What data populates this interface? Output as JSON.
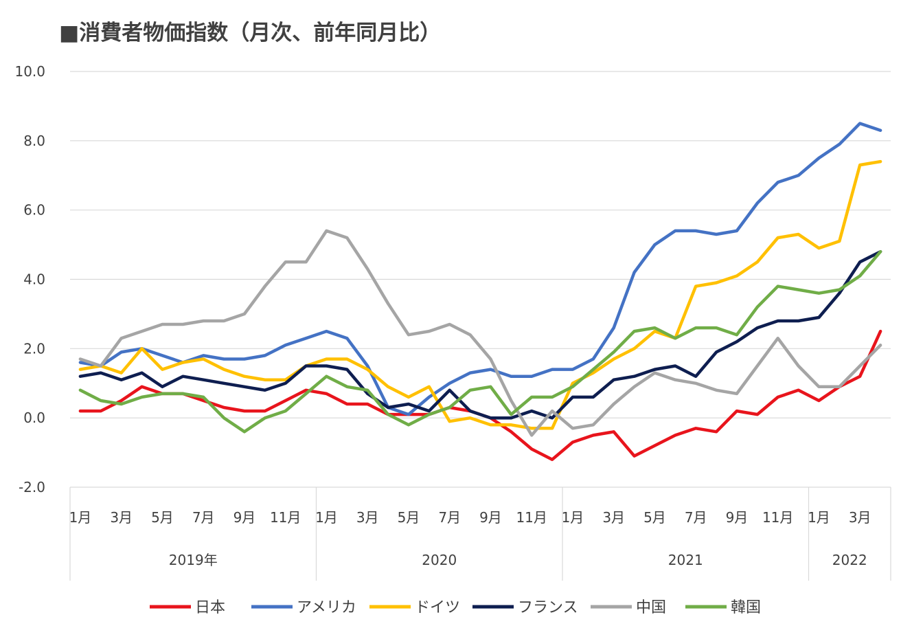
{
  "chart_data": {
    "type": "line",
    "title": "■消費者物価指数（月次、前年同月比）",
    "ylim": [
      -2.0,
      10.0
    ],
    "y_ticks": [
      "10.0",
      "8.0",
      "6.0",
      "4.0",
      "2.0",
      "0.0",
      "-2.0"
    ],
    "x_tick_labels": [
      "1月",
      "3月",
      "5月",
      "7月",
      "9月",
      "11月",
      "1月",
      "3月",
      "5月",
      "7月",
      "9月",
      "11月",
      "1月",
      "3月",
      "5月",
      "7月",
      "9月",
      "11月",
      "1月",
      "3月"
    ],
    "year_groups": [
      {
        "label": "2019年",
        "months": 12
      },
      {
        "label": "2020",
        "months": 12
      },
      {
        "label": "2021",
        "months": 12
      },
      {
        "label": "2022",
        "months": 4
      }
    ],
    "x": [
      "2019-01",
      "2019-02",
      "2019-03",
      "2019-04",
      "2019-05",
      "2019-06",
      "2019-07",
      "2019-08",
      "2019-09",
      "2019-10",
      "2019-11",
      "2019-12",
      "2020-01",
      "2020-02",
      "2020-03",
      "2020-04",
      "2020-05",
      "2020-06",
      "2020-07",
      "2020-08",
      "2020-09",
      "2020-10",
      "2020-11",
      "2020-12",
      "2021-01",
      "2021-02",
      "2021-03",
      "2021-04",
      "2021-05",
      "2021-06",
      "2021-07",
      "2021-08",
      "2021-09",
      "2021-10",
      "2021-11",
      "2021-12",
      "2022-01",
      "2022-02",
      "2022-03",
      "2022-04"
    ],
    "grid": true,
    "legend_position": "bottom",
    "series": [
      {
        "name": "日本",
        "color": "#e8141c",
        "values": [
          0.2,
          0.2,
          0.5,
          0.9,
          0.7,
          0.7,
          0.5,
          0.3,
          0.2,
          0.2,
          0.5,
          0.8,
          0.7,
          0.4,
          0.4,
          0.1,
          0.1,
          0.1,
          0.3,
          0.2,
          0.0,
          -0.4,
          -0.9,
          -1.2,
          -0.7,
          -0.5,
          -0.4,
          -1.1,
          -0.8,
          -0.5,
          -0.3,
          -0.4,
          0.2,
          0.1,
          0.6,
          0.8,
          0.5,
          0.9,
          1.2,
          2.5
        ]
      },
      {
        "name": "アメリカ",
        "color": "#4472c4",
        "values": [
          1.6,
          1.5,
          1.9,
          2.0,
          1.8,
          1.6,
          1.8,
          1.7,
          1.7,
          1.8,
          2.1,
          2.3,
          2.5,
          2.3,
          1.5,
          0.3,
          0.1,
          0.6,
          1.0,
          1.3,
          1.4,
          1.2,
          1.2,
          1.4,
          1.4,
          1.7,
          2.6,
          4.2,
          5.0,
          5.4,
          5.4,
          5.3,
          5.4,
          6.2,
          6.8,
          7.0,
          7.5,
          7.9,
          8.5,
          8.3
        ]
      },
      {
        "name": "ドイツ",
        "color": "#ffc000",
        "values": [
          1.4,
          1.5,
          1.3,
          2.0,
          1.4,
          1.6,
          1.7,
          1.4,
          1.2,
          1.1,
          1.1,
          1.5,
          1.7,
          1.7,
          1.4,
          0.9,
          0.6,
          0.9,
          -0.1,
          0.0,
          -0.2,
          -0.2,
          -0.3,
          -0.3,
          1.0,
          1.3,
          1.7,
          2.0,
          2.5,
          2.3,
          3.8,
          3.9,
          4.1,
          4.5,
          5.2,
          5.3,
          4.9,
          5.1,
          7.3,
          7.4
        ]
      },
      {
        "name": "フランス",
        "color": "#0e1e50",
        "values": [
          1.2,
          1.3,
          1.1,
          1.3,
          0.9,
          1.2,
          1.1,
          1.0,
          0.9,
          0.8,
          1.0,
          1.5,
          1.5,
          1.4,
          0.7,
          0.3,
          0.4,
          0.2,
          0.8,
          0.2,
          0.0,
          0.0,
          0.2,
          0.0,
          0.6,
          0.6,
          1.1,
          1.2,
          1.4,
          1.5,
          1.2,
          1.9,
          2.2,
          2.6,
          2.8,
          2.8,
          2.9,
          3.6,
          4.5,
          4.8
        ]
      },
      {
        "name": "中国",
        "color": "#a5a5a5",
        "values": [
          1.7,
          1.5,
          2.3,
          2.5,
          2.7,
          2.7,
          2.8,
          2.8,
          3.0,
          3.8,
          4.5,
          4.5,
          5.4,
          5.2,
          4.3,
          3.3,
          2.4,
          2.5,
          2.7,
          2.4,
          1.7,
          0.5,
          -0.5,
          0.2,
          -0.3,
          -0.2,
          0.4,
          0.9,
          1.3,
          1.1,
          1.0,
          0.8,
          0.7,
          1.5,
          2.3,
          1.5,
          0.9,
          0.9,
          1.5,
          2.1
        ]
      },
      {
        "name": "韓国",
        "color": "#70ad47",
        "values": [
          0.8,
          0.5,
          0.4,
          0.6,
          0.7,
          0.7,
          0.6,
          0.0,
          -0.4,
          0.0,
          0.2,
          0.7,
          1.2,
          0.9,
          0.8,
          0.1,
          -0.2,
          0.1,
          0.3,
          0.8,
          0.9,
          0.1,
          0.6,
          0.6,
          0.9,
          1.4,
          1.9,
          2.5,
          2.6,
          2.3,
          2.6,
          2.6,
          2.4,
          3.2,
          3.8,
          3.7,
          3.6,
          3.7,
          4.1,
          4.8
        ]
      }
    ]
  }
}
